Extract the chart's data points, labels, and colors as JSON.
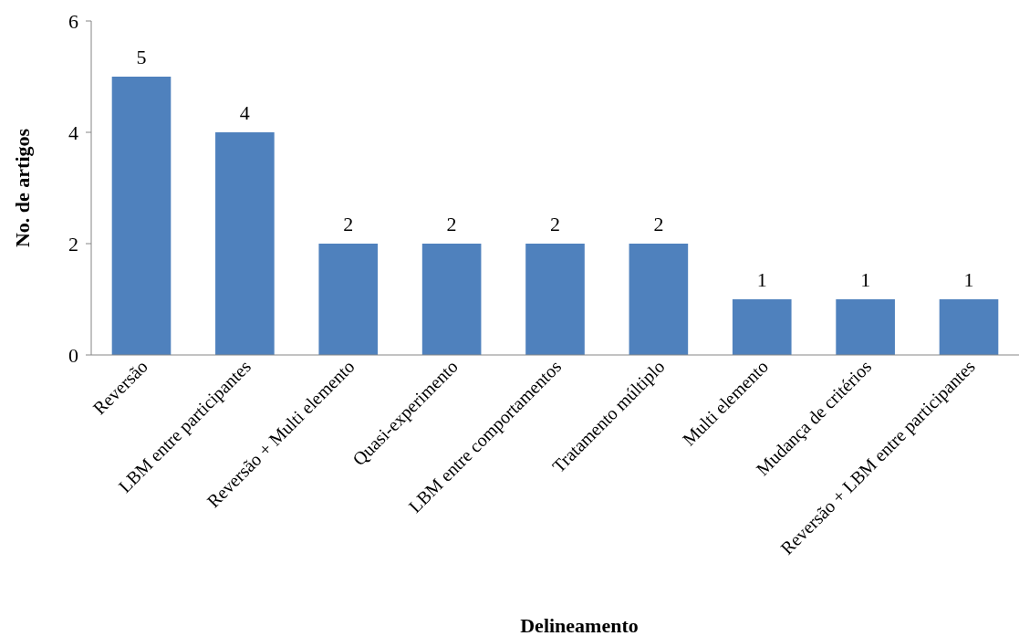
{
  "chart_data": {
    "type": "bar",
    "xlabel": "Delineamento",
    "ylabel": "No. de artigos",
    "categories": [
      "Reversão",
      "LBM entre participantes",
      "Reversão + Multi elemento",
      "Quasi-experimento",
      "LBM entre comportamentos",
      "Tratamento múltiplo",
      "Multi elemento",
      "Mudança de critérios",
      "Reversão + LBM entre participantes"
    ],
    "values": [
      5,
      4,
      2,
      2,
      2,
      2,
      1,
      1,
      1
    ],
    "color": "#4f81bd",
    "ylim": [
      0,
      6
    ],
    "yticks": [
      0,
      2,
      4,
      6
    ],
    "grid": false,
    "data_labels": true
  }
}
